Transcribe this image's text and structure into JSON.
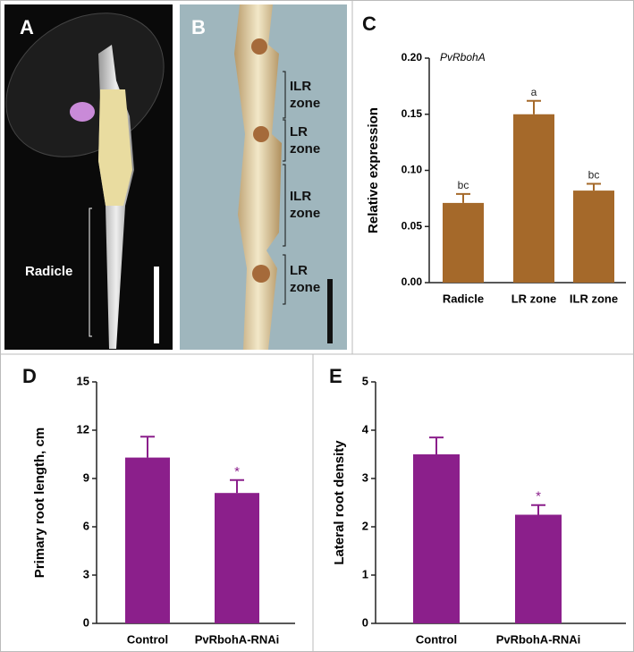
{
  "photos": {
    "a": {
      "letter": "A",
      "label": "Radicle"
    },
    "b": {
      "letter": "B",
      "zones": [
        [
          "ILR",
          "zone"
        ],
        [
          "LR",
          "zone"
        ],
        [
          "ILR",
          "zone"
        ],
        [
          "LR",
          "zone"
        ]
      ]
    }
  },
  "chart_data": [
    {
      "type": "bar",
      "panel": "C",
      "title": "PvRbohA",
      "y_label": "Relative expression",
      "categories": [
        "Radicle",
        "LR zone",
        "ILR zone"
      ],
      "values": [
        0.071,
        0.15,
        0.082
      ],
      "errors": [
        0.008,
        0.012,
        0.006
      ],
      "annotations": [
        "bc",
        "a",
        "bc"
      ],
      "color": "#a5692a",
      "ylim": [
        0,
        0.2
      ],
      "yticks": [
        {
          "value": 0,
          "label": "0.00"
        },
        {
          "value": 0.05,
          "label": "0.05"
        },
        {
          "value": 0.1,
          "label": "0.10"
        },
        {
          "value": 0.15,
          "label": "0.15"
        },
        {
          "value": 0.2,
          "label": "0.20"
        }
      ]
    },
    {
      "type": "bar",
      "panel": "D",
      "y_label": "Primary root length, cm",
      "categories": [
        "Control",
        "PvRbohA-RNAi"
      ],
      "values": [
        10.3,
        8.1
      ],
      "errors": [
        1.3,
        0.8
      ],
      "annotations": [
        null,
        "*"
      ],
      "color": "#8b1f8b",
      "ylim": [
        0,
        15
      ],
      "yticks": [
        0,
        3,
        6,
        9,
        12,
        15
      ]
    },
    {
      "type": "bar",
      "panel": "E",
      "y_label": "Lateral root density",
      "categories": [
        "Control",
        "PvRbohA-RNAi"
      ],
      "values": [
        3.5,
        2.25
      ],
      "errors": [
        0.35,
        0.2
      ],
      "annotations": [
        null,
        "*"
      ],
      "color": "#8b1f8b",
      "ylim": [
        0,
        5
      ],
      "yticks": [
        0,
        1,
        2,
        3,
        4,
        5
      ]
    }
  ]
}
